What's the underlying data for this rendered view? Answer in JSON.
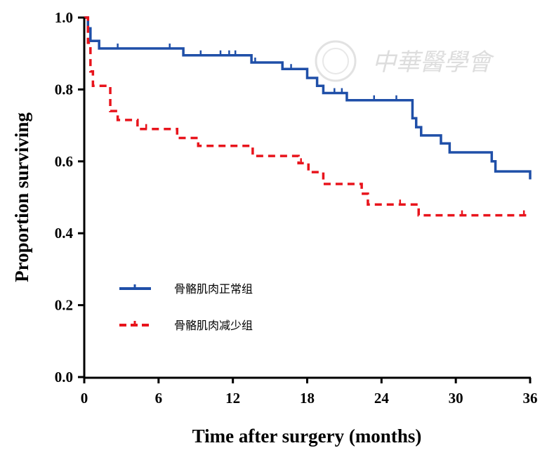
{
  "chart_data": {
    "type": "line",
    "subtype": "kaplan-meier",
    "xlabel": "Time after surgery (months)",
    "ylabel": "Proportion surviving",
    "xlim": [
      0,
      36
    ],
    "ylim": [
      0,
      1
    ],
    "xticks": [
      "0",
      "6",
      "12",
      "18",
      "24",
      "30",
      "36"
    ],
    "yticks": [
      "0.0",
      "0.2",
      "0.4",
      "0.6",
      "0.8",
      "1.0"
    ],
    "legend_position": "center-left",
    "watermark": "中華醫學會",
    "series": [
      {
        "name": "骨骼肌肉正常组",
        "color": "#1f4fa8",
        "style": "solid",
        "steps": [
          [
            0,
            1.0
          ],
          [
            0.3,
            0.97
          ],
          [
            0.5,
            0.935
          ],
          [
            1.2,
            0.914
          ],
          [
            8.0,
            0.895
          ],
          [
            13.5,
            0.875
          ],
          [
            16.0,
            0.857
          ],
          [
            18.0,
            0.832
          ],
          [
            18.8,
            0.81
          ],
          [
            19.3,
            0.79
          ],
          [
            21.2,
            0.77
          ],
          [
            26.5,
            0.72
          ],
          [
            26.8,
            0.695
          ],
          [
            27.2,
            0.672
          ],
          [
            28.8,
            0.65
          ],
          [
            29.5,
            0.625
          ],
          [
            32.9,
            0.6
          ],
          [
            33.2,
            0.572
          ],
          [
            36,
            0.55
          ]
        ],
        "censored": [
          2.7,
          6.9,
          9.4,
          11.0,
          11.7,
          12.2,
          13.8,
          16.7,
          20.2,
          20.8,
          23.4,
          25.2,
          36
        ]
      },
      {
        "name": "骨骼肌肉减少组",
        "color": "#e8141c",
        "style": "dashed",
        "steps": [
          [
            0,
            1.0
          ],
          [
            0.3,
            0.93
          ],
          [
            0.5,
            0.85
          ],
          [
            0.7,
            0.81
          ],
          [
            2.1,
            0.74
          ],
          [
            2.7,
            0.715
          ],
          [
            4.3,
            0.69
          ],
          [
            7.5,
            0.665
          ],
          [
            9.2,
            0.643
          ],
          [
            13.6,
            0.615
          ],
          [
            17.3,
            0.595
          ],
          [
            18.1,
            0.57
          ],
          [
            19.3,
            0.537
          ],
          [
            22.4,
            0.51
          ],
          [
            22.9,
            0.48
          ],
          [
            27.0,
            0.45
          ],
          [
            36,
            0.45
          ]
        ],
        "censored": [
          5.0,
          17.5,
          25.5,
          30.5,
          35.5
        ]
      }
    ]
  }
}
